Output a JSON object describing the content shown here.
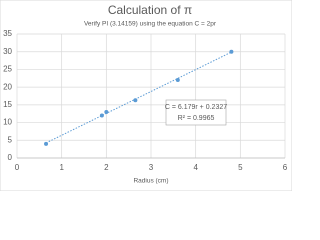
{
  "chart_data": {
    "type": "scatter",
    "title": "Calculation of π",
    "subtitle": "Verify PI (3.14159) using the equation C = 2pr",
    "x_label": "Radius (cm)",
    "x": [
      0.65,
      1.9,
      2.0,
      2.65,
      3.6,
      4.8
    ],
    "values": [
      4,
      12,
      13,
      16.3,
      22,
      30
    ],
    "color": "#5b9bd5",
    "xlim": [
      0,
      6
    ],
    "xticks": [
      0,
      1,
      2,
      3,
      4,
      5,
      6
    ],
    "ylim": [
      0,
      35
    ],
    "yticks": [
      0,
      5,
      10,
      15,
      20,
      25,
      30,
      35
    ],
    "grid": true,
    "trendline": {
      "slope": 6.179,
      "intercept": 0.2327,
      "equation": "C = 6.179r + 0.2327",
      "r_squared": "R² = 0.9965"
    }
  }
}
